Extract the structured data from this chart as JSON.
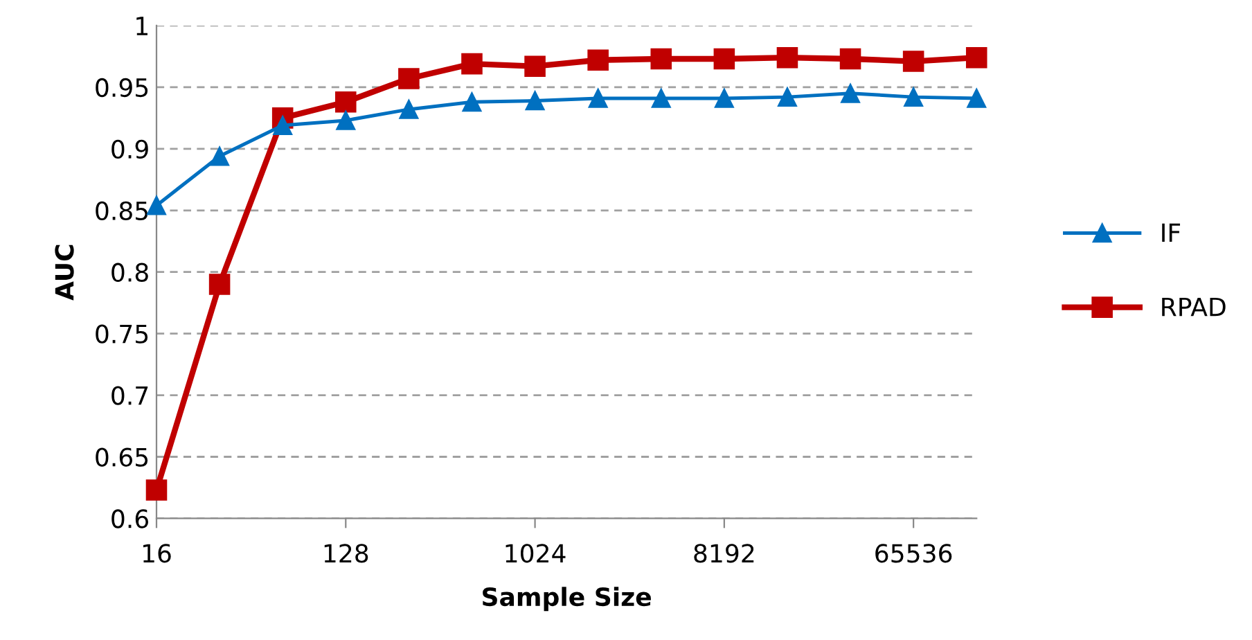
{
  "chart_data": {
    "type": "line",
    "xlabel": "Sample Size",
    "ylabel": "AUC",
    "categories": [
      "16",
      null,
      null,
      "128",
      null,
      null,
      "1024",
      null,
      null,
      "8192",
      null,
      null,
      "65536",
      null
    ],
    "series": [
      {
        "name": "IF",
        "color": "#0070c0",
        "marker": "triangle",
        "values": [
          0.854,
          0.894,
          0.919,
          0.923,
          0.932,
          0.938,
          0.939,
          0.941,
          0.941,
          0.941,
          0.942,
          0.945,
          0.942,
          0.941
        ]
      },
      {
        "name": "RPAD",
        "color": "#c00000",
        "marker": "square",
        "values": [
          0.623,
          0.79,
          0.925,
          0.938,
          0.957,
          0.969,
          0.967,
          0.972,
          0.973,
          0.973,
          0.974,
          0.973,
          0.971,
          0.974
        ]
      }
    ],
    "ylim": [
      0.6,
      1
    ],
    "yticks": [
      {
        "value": 0.6,
        "label": "0.6"
      },
      {
        "value": 0.65,
        "label": "0.65"
      },
      {
        "value": 0.7,
        "label": "0.7"
      },
      {
        "value": 0.75,
        "label": "0.75"
      },
      {
        "value": 0.8,
        "label": "0.8"
      },
      {
        "value": 0.85,
        "label": "0.85"
      },
      {
        "value": 0.9,
        "label": "0.9"
      },
      {
        "value": 0.95,
        "label": "0.95"
      },
      {
        "value": 1,
        "label": "1"
      }
    ],
    "grid": "y",
    "legend": "right",
    "line_style": "solid"
  }
}
